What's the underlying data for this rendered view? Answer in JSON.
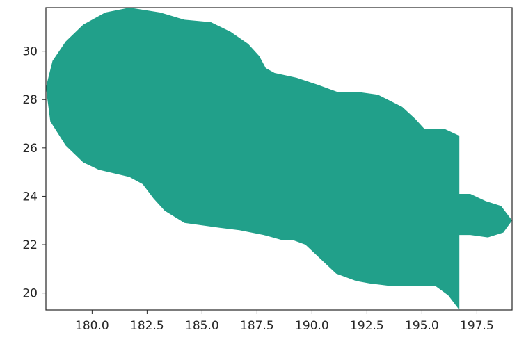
{
  "chart_data": {
    "type": "area",
    "title": "",
    "xlabel": "",
    "ylabel": "",
    "xlim": [
      177.9,
      199.1
    ],
    "ylim": [
      19.3,
      31.8
    ],
    "grid": false,
    "legend": "none",
    "fill_color": "#21a08a",
    "x_ticks": [
      180.0,
      182.5,
      185.0,
      187.5,
      190.0,
      192.5,
      195.0,
      197.5
    ],
    "x_tick_labels": [
      "180.0",
      "182.5",
      "185.0",
      "187.5",
      "190.0",
      "192.5",
      "195.0",
      "197.5"
    ],
    "y_ticks": [
      20,
      22,
      24,
      26,
      28,
      30
    ],
    "y_tick_labels": [
      "20",
      "22",
      "24",
      "26",
      "28",
      "30"
    ],
    "series": [
      {
        "outline": [
          [
            177.9,
            28.5
          ],
          [
            178.2,
            29.6
          ],
          [
            178.8,
            30.4
          ],
          [
            179.6,
            31.1
          ],
          [
            180.6,
            31.6
          ],
          [
            181.7,
            31.8
          ],
          [
            183.1,
            31.6
          ],
          [
            184.2,
            31.3
          ],
          [
            185.4,
            31.2
          ],
          [
            186.3,
            30.8
          ],
          [
            187.1,
            30.3
          ],
          [
            187.6,
            29.8
          ],
          [
            187.9,
            29.3
          ],
          [
            188.3,
            29.1
          ],
          [
            189.3,
            28.9
          ],
          [
            190.3,
            28.6
          ],
          [
            191.2,
            28.3
          ],
          [
            192.2,
            28.3
          ],
          [
            193.0,
            28.2
          ],
          [
            194.1,
            27.7
          ],
          [
            194.7,
            27.2
          ],
          [
            195.1,
            26.8
          ],
          [
            196.0,
            26.8
          ],
          [
            196.7,
            26.5
          ],
          [
            196.7,
            24.1
          ],
          [
            197.2,
            24.1
          ],
          [
            197.9,
            23.8
          ],
          [
            198.6,
            23.6
          ],
          [
            199.1,
            23.0
          ],
          [
            198.7,
            22.5
          ],
          [
            198.0,
            22.3
          ],
          [
            197.2,
            22.4
          ],
          [
            196.7,
            22.4
          ],
          [
            196.7,
            19.3
          ],
          [
            196.2,
            19.9
          ],
          [
            195.6,
            20.3
          ],
          [
            194.6,
            20.3
          ],
          [
            193.5,
            20.3
          ],
          [
            192.6,
            20.4
          ],
          [
            192.0,
            20.5
          ],
          [
            191.1,
            20.8
          ],
          [
            190.4,
            21.4
          ],
          [
            189.7,
            22.0
          ],
          [
            189.1,
            22.2
          ],
          [
            188.6,
            22.2
          ],
          [
            187.8,
            22.4
          ],
          [
            186.7,
            22.6
          ],
          [
            185.8,
            22.7
          ],
          [
            185.0,
            22.8
          ],
          [
            184.2,
            22.9
          ],
          [
            183.3,
            23.4
          ],
          [
            182.8,
            23.9
          ],
          [
            182.3,
            24.5
          ],
          [
            181.7,
            24.8
          ],
          [
            180.3,
            25.1
          ],
          [
            179.6,
            25.4
          ],
          [
            178.8,
            26.1
          ],
          [
            178.1,
            27.1
          ],
          [
            177.9,
            28.5
          ]
        ]
      }
    ]
  }
}
